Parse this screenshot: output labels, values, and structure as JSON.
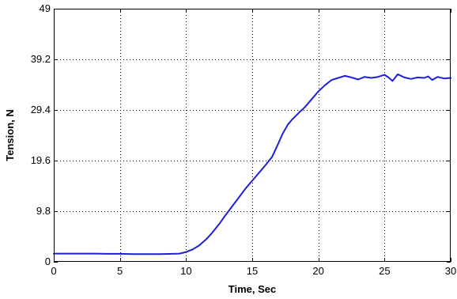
{
  "chart_data": {
    "type": "line",
    "title": "",
    "xlabel": "Time, Sec",
    "ylabel": "Tension, N",
    "xlim": [
      0,
      30
    ],
    "ylim": [
      0,
      49
    ],
    "x_ticks": [
      0,
      5,
      10,
      15,
      20,
      25,
      30
    ],
    "y_ticks": [
      0,
      9.8,
      19.6,
      29.4,
      39.2,
      49
    ],
    "x_tick_labels": [
      "0",
      "5",
      "10",
      "15",
      "20",
      "25",
      "30"
    ],
    "y_tick_labels": [
      "0",
      "9.8",
      "19.6",
      "29.4",
      "39.2",
      "49"
    ],
    "grid": true,
    "legend": "none",
    "colors": {
      "series": "#1f1fd6",
      "axes": "#000000",
      "background": "#ffffff"
    },
    "series": [
      {
        "x": [
          0,
          1,
          2,
          3,
          4,
          5,
          6,
          7,
          8,
          9,
          9.5,
          10,
          10.5,
          11,
          11.5,
          12,
          12.5,
          13,
          13.5,
          14,
          14.5,
          15,
          15.5,
          16,
          16.5,
          16.9,
          17.3,
          17.7,
          18,
          18.5,
          19,
          19.5,
          20,
          20.5,
          21,
          21.5,
          22,
          22.5,
          23,
          23.5,
          24,
          24.5,
          25,
          25.3,
          25.6,
          26,
          26.5,
          27,
          27.5,
          28,
          28.3,
          28.6,
          29,
          29.5,
          30
        ],
        "y": [
          1.6,
          1.6,
          1.6,
          1.6,
          1.55,
          1.55,
          1.5,
          1.5,
          1.5,
          1.55,
          1.6,
          1.9,
          2.4,
          3.2,
          4.3,
          5.7,
          7.3,
          9.1,
          10.8,
          12.5,
          14.2,
          15.7,
          17.2,
          18.7,
          20.3,
          22.5,
          24.8,
          26.6,
          27.5,
          28.8,
          30.0,
          31.5,
          33.0,
          34.2,
          35.2,
          35.6,
          36.0,
          35.7,
          35.3,
          35.8,
          35.6,
          35.8,
          36.2,
          35.7,
          35.0,
          36.3,
          35.7,
          35.4,
          35.7,
          35.6,
          35.9,
          35.2,
          35.8,
          35.5,
          35.6
        ]
      }
    ]
  }
}
